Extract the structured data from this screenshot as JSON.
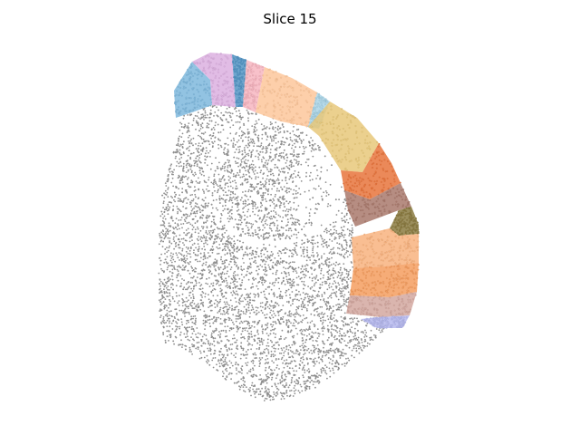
{
  "figure": {
    "title": "Slice 15"
  },
  "colors": {
    "background_cells": "#8f8f8f",
    "regions": [
      "#7fb8dd",
      "#dcb0e0",
      "#5596c6",
      "#f7b6c1",
      "#fdc79b",
      "#a9d4e6",
      "#e7c87a",
      "#e8743c",
      "#a9796c",
      "#8b7b41",
      "#f8b37f",
      "#f49d5f",
      "#d4a8a0",
      "#b6b9ef"
    ]
  }
}
